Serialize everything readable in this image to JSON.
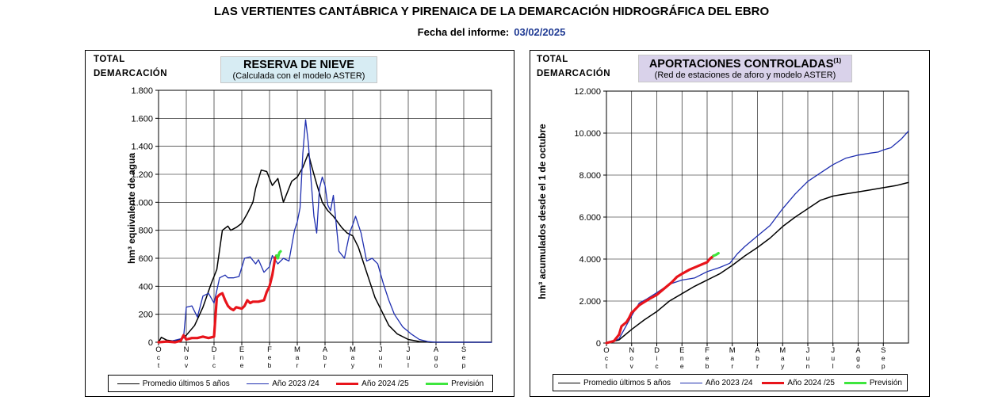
{
  "title": "LAS VERTIENTES CANTÁBRICA Y PIRENAICA DE LA  DEMARCACIÓN HIDROGRÁFICA DEL EBRO",
  "report_label": "Fecha del informe:",
  "report_date": "03/02/2025",
  "colors": {
    "avg": "#000000",
    "y2324": "#1f2fb0",
    "y2425": "#e8141b",
    "forecast": "#3ee63e",
    "title_bg_left": "#d7ecf3",
    "title_bg_right": "#d9d2ea",
    "report_date": "#1f3a93"
  },
  "chart_data": [
    {
      "type": "line",
      "corner_label_1": "TOTAL",
      "corner_label_2": "DEMARCACIÓN",
      "title": "RESERVA DE NIEVE",
      "subtitle": "(Calculada con el modelo ASTER)",
      "ylabel": "hm³ equivalente de agua",
      "ylim": [
        0,
        1800
      ],
      "yticks": [
        0,
        200,
        400,
        600,
        800,
        1000,
        1200,
        1400,
        1600,
        1800
      ],
      "ytick_labels": [
        "0",
        "200",
        "400",
        "600",
        "800",
        "1.000",
        "1.200",
        "1.400",
        "1.600",
        "1.800"
      ],
      "months": [
        "Oct",
        "Nov",
        "Dic",
        "Ene",
        "Feb",
        "Mar",
        "Abr",
        "May",
        "Jun",
        "Jul",
        "Ago",
        "Sep"
      ],
      "grid": true,
      "legend_position": "bottom",
      "series": [
        {
          "name": "Promedio últimos 5 años",
          "key": "avg",
          "x": [
            0,
            0.1,
            0.3,
            0.5,
            0.8,
            1.0,
            1.3,
            1.6,
            1.9,
            2.1,
            2.3,
            2.5,
            2.6,
            2.8,
            3.0,
            3.2,
            3.4,
            3.5,
            3.7,
            3.9,
            4.1,
            4.3,
            4.5,
            4.8,
            5.0,
            5.2,
            5.4,
            5.5,
            5.7,
            5.9,
            6.1,
            6.3,
            6.6,
            6.8,
            7.0,
            7.2,
            7.4,
            7.6,
            7.8,
            8.0,
            8.3,
            8.6,
            9.0,
            9.4,
            9.8,
            10.3,
            10.7,
            11.2,
            11.6,
            12.0
          ],
          "y": [
            0,
            35,
            15,
            10,
            20,
            50,
            120,
            250,
            420,
            520,
            800,
            830,
            800,
            820,
            850,
            920,
            1000,
            1100,
            1230,
            1220,
            1120,
            1170,
            1000,
            1150,
            1180,
            1250,
            1350,
            1270,
            1130,
            1000,
            940,
            900,
            820,
            780,
            760,
            680,
            560,
            440,
            320,
            240,
            120,
            60,
            20,
            5,
            0,
            0,
            0,
            0,
            0,
            0
          ]
        },
        {
          "name": "Año 2023 /24",
          "key": "y2324",
          "x": [
            0,
            0.5,
            0.9,
            1.0,
            1.2,
            1.4,
            1.6,
            1.8,
            2.0,
            2.2,
            2.4,
            2.5,
            2.7,
            2.9,
            3.1,
            3.3,
            3.5,
            3.6,
            3.8,
            4.0,
            4.1,
            4.3,
            4.5,
            4.7,
            4.9,
            5.0,
            5.1,
            5.2,
            5.3,
            5.4,
            5.5,
            5.6,
            5.7,
            5.8,
            5.9,
            6.0,
            6.1,
            6.2,
            6.3,
            6.5,
            6.7,
            6.9,
            7.0,
            7.1,
            7.3,
            7.5,
            7.7,
            7.9,
            8.1,
            8.3,
            8.5,
            8.8,
            9.1,
            9.4,
            9.7,
            10.0,
            10.5,
            11.0,
            11.5,
            12.0
          ],
          "y": [
            0,
            10,
            30,
            250,
            260,
            180,
            330,
            350,
            280,
            460,
            480,
            460,
            460,
            470,
            600,
            610,
            560,
            590,
            500,
            540,
            620,
            560,
            600,
            580,
            800,
            860,
            960,
            1350,
            1590,
            1420,
            1150,
            900,
            780,
            1100,
            1180,
            1120,
            980,
            940,
            1050,
            650,
            600,
            790,
            840,
            900,
            780,
            580,
            600,
            560,
            420,
            300,
            200,
            110,
            60,
            20,
            5,
            0,
            0,
            0,
            0,
            0
          ]
        },
        {
          "name": "Año 2024 /25",
          "key": "y2425",
          "x": [
            0,
            0.3,
            0.6,
            0.8,
            0.9,
            1.0,
            1.2,
            1.4,
            1.6,
            1.8,
            2.0,
            2.1,
            2.2,
            2.3,
            2.4,
            2.5,
            2.6,
            2.7,
            2.8,
            3.0,
            3.1,
            3.2,
            3.3,
            3.4,
            3.6,
            3.8,
            3.9,
            4.0,
            4.1,
            4.2,
            4.25
          ],
          "y": [
            0,
            5,
            0,
            10,
            50,
            20,
            30,
            30,
            40,
            30,
            40,
            320,
            340,
            350,
            300,
            260,
            240,
            230,
            250,
            240,
            260,
            300,
            280,
            290,
            290,
            300,
            360,
            400,
            480,
            600,
            620
          ]
        },
        {
          "name": "Previsión",
          "key": "forecast",
          "x": [
            4.25,
            4.3,
            4.35,
            4.4
          ],
          "y": [
            620,
            600,
            640,
            650
          ]
        }
      ]
    },
    {
      "type": "line",
      "corner_label_1": "TOTAL",
      "corner_label_2": "DEMARCACIÓN",
      "title": "APORTACIONES CONTROLADAS",
      "title_sup": "(1)",
      "subtitle": "(Red de estaciones de aforo y modelo ASTER)",
      "ylabel": "hm³ acumulados desde el 1 de octubre",
      "ylim": [
        0,
        12000
      ],
      "yticks": [
        0,
        2000,
        4000,
        6000,
        8000,
        10000,
        12000
      ],
      "ytick_labels": [
        "0",
        "2.000",
        "4.000",
        "6.000",
        "8.000",
        "10.000",
        "12.000"
      ],
      "months": [
        "Oct",
        "Nov",
        "Dic",
        "Ene",
        "Feb",
        "Mar",
        "Abr",
        "May",
        "Jun",
        "Jul",
        "Ago",
        "Sep"
      ],
      "grid": true,
      "legend_position": "bottom",
      "series": [
        {
          "name": "Promedio últimos 5 años",
          "key": "avg",
          "x": [
            0,
            0.5,
            1,
            1.5,
            2,
            2.5,
            3,
            3.5,
            4,
            4.5,
            5,
            5.5,
            6,
            6.5,
            7,
            7.5,
            8,
            8.5,
            9,
            9.5,
            10,
            10.5,
            11,
            11.5,
            12
          ],
          "y": [
            0,
            150,
            650,
            1100,
            1500,
            2000,
            2350,
            2700,
            3000,
            3300,
            3700,
            4150,
            4550,
            5000,
            5550,
            6000,
            6400,
            6800,
            7000,
            7100,
            7200,
            7300,
            7400,
            7500,
            7650
          ]
        },
        {
          "name": "Año 2023 /24",
          "key": "y2324",
          "x": [
            0,
            0.5,
            1,
            1.3,
            1.6,
            2,
            2.5,
            3,
            3.5,
            4,
            4.5,
            4.9,
            5.2,
            5.5,
            6,
            6.5,
            7,
            7.5,
            8,
            8.5,
            9,
            9.5,
            10,
            10.5,
            10.8,
            11,
            11.3,
            11.5,
            11.7,
            12
          ],
          "y": [
            0,
            200,
            1300,
            1900,
            2100,
            2400,
            2800,
            3000,
            3100,
            3400,
            3600,
            3800,
            4250,
            4600,
            5100,
            5600,
            6400,
            7100,
            7700,
            8100,
            8500,
            8800,
            8950,
            9050,
            9100,
            9200,
            9300,
            9500,
            9700,
            10100
          ]
        },
        {
          "name": "Año 2024 /25",
          "key": "y2425",
          "x": [
            0,
            0.3,
            0.5,
            0.6,
            0.8,
            0.9,
            1.0,
            1.1,
            1.3,
            1.5,
            1.7,
            2.0,
            2.3,
            2.6,
            2.8,
            3.0,
            3.3,
            3.6,
            3.8,
            4.0,
            4.1,
            4.2,
            4.25
          ],
          "y": [
            0,
            100,
            400,
            800,
            1000,
            1200,
            1450,
            1550,
            1800,
            1950,
            2100,
            2300,
            2600,
            2900,
            3150,
            3300,
            3500,
            3650,
            3750,
            3850,
            4000,
            4100,
            4150
          ]
        },
        {
          "name": "Previsión",
          "key": "forecast",
          "x": [
            4.25,
            4.35,
            4.45
          ],
          "y": [
            4150,
            4200,
            4280
          ]
        }
      ]
    }
  ]
}
